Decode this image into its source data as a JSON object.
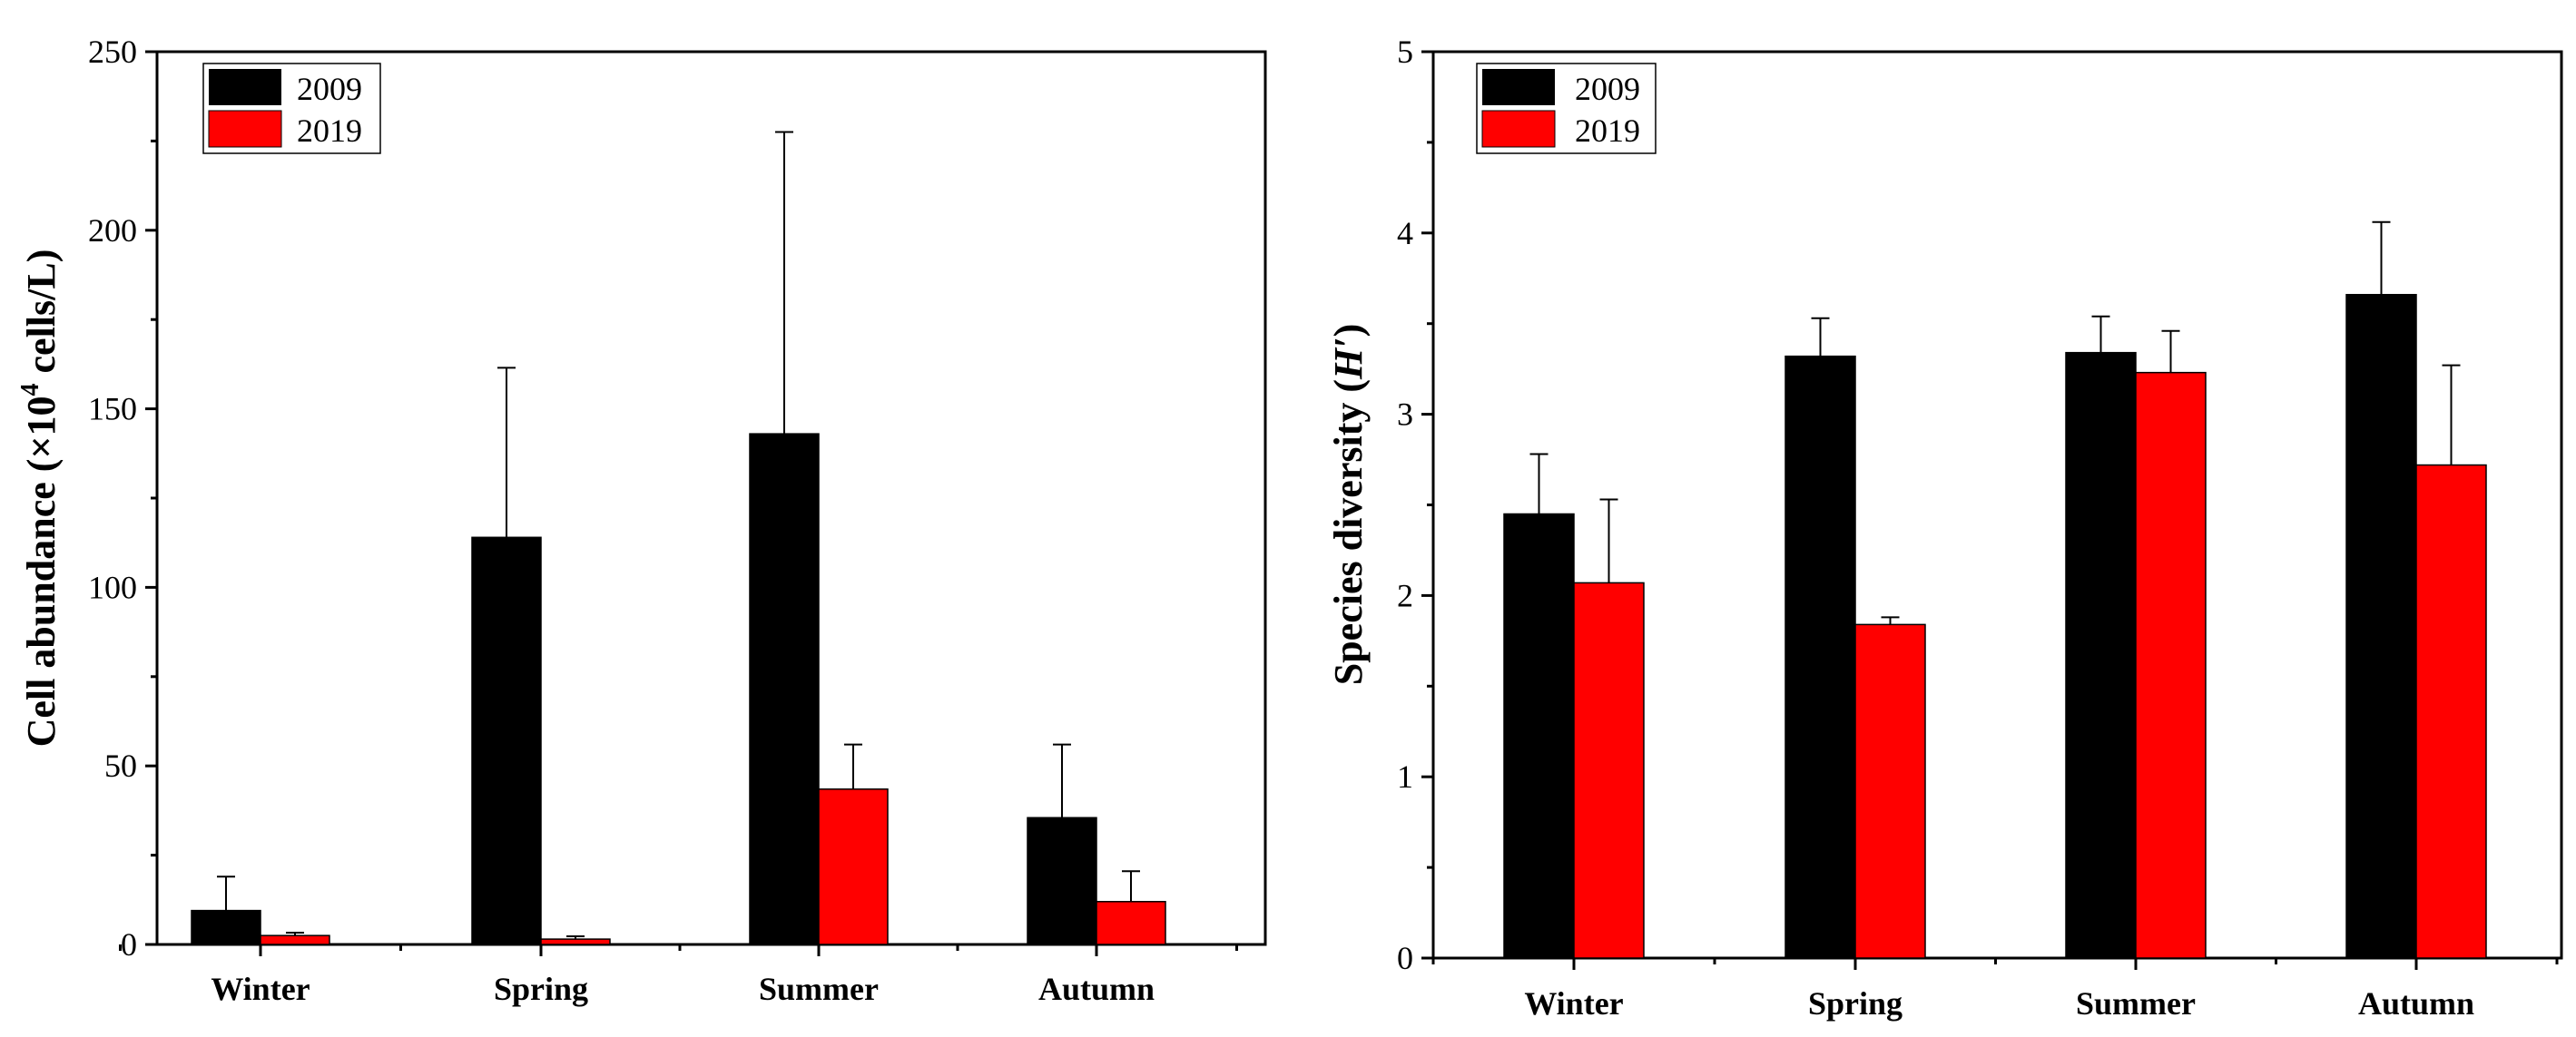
{
  "chart_data": [
    {
      "type": "bar",
      "categories": [
        "Winter",
        "Spring",
        "Summer",
        "Autumn"
      ],
      "series": [
        {
          "name": "2009",
          "color": "#000000",
          "values": [
            9.5,
            114,
            143,
            35.5
          ],
          "errors": [
            9.5,
            47.5,
            84.5,
            20.5
          ]
        },
        {
          "name": "2019",
          "color": "#ff0000",
          "values": [
            2.5,
            1.5,
            43.5,
            12
          ],
          "errors": [
            0.8,
            0.8,
            12.5,
            8.5
          ]
        }
      ],
      "ylabel_prefix": "Cell abundance (×10",
      "ylabel_sup": "4",
      "ylabel_suffix": " cells/L)",
      "ylim": [
        0,
        250
      ],
      "yticks": [
        "0",
        "50",
        "100",
        "150",
        "200",
        "250"
      ],
      "ytick_values": [
        0,
        50,
        100,
        150,
        200,
        250
      ],
      "legend": [
        "2009",
        "2019"
      ],
      "legend_position": "top-left"
    },
    {
      "type": "bar",
      "categories": [
        "Winter",
        "Spring",
        "Summer",
        "Autumn"
      ],
      "series": [
        {
          "name": "2009",
          "color": "#000000",
          "values": [
            2.45,
            3.32,
            3.34,
            3.66
          ],
          "errors": [
            0.33,
            0.21,
            0.2,
            0.4
          ]
        },
        {
          "name": "2019",
          "color": "#ff0000",
          "values": [
            2.07,
            1.84,
            3.23,
            2.72
          ],
          "errors": [
            0.46,
            0.04,
            0.23,
            0.55
          ]
        }
      ],
      "ylabel_prefix": "Species diversity (",
      "ylabel_italic": "H′",
      "ylabel_suffix": ")",
      "ylim": [
        0,
        5
      ],
      "yticks": [
        "0",
        "1",
        "2",
        "3",
        "4",
        "5"
      ],
      "ytick_values": [
        0,
        1,
        2,
        3,
        4,
        5
      ],
      "legend": [
        "2009",
        "2019"
      ],
      "legend_position": "top-left"
    }
  ]
}
